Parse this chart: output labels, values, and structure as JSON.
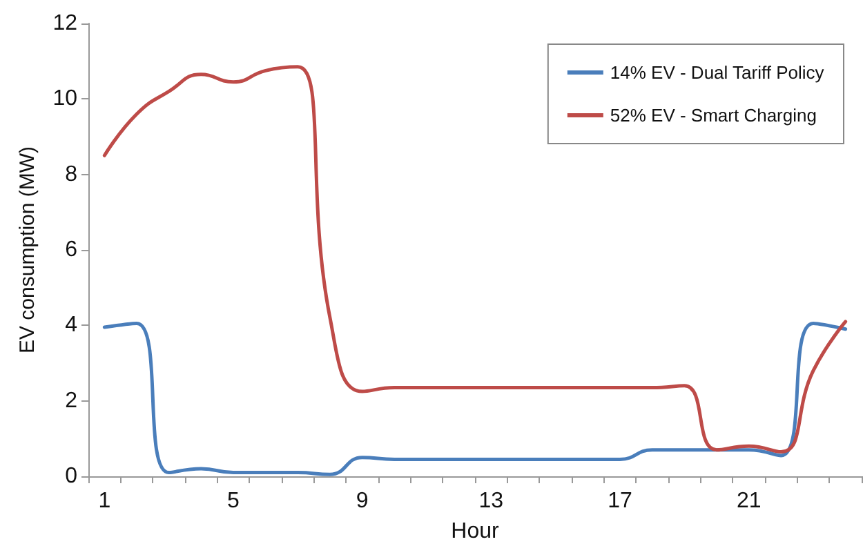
{
  "chart_data": {
    "type": "line",
    "xlabel": "Hour",
    "ylabel": "EV consumption (MW)",
    "categories": [
      "1",
      null,
      null,
      null,
      "5",
      null,
      null,
      null,
      "9",
      null,
      null,
      null,
      "13",
      null,
      null,
      null,
      "17",
      null,
      null,
      null,
      "21",
      null,
      null,
      null
    ],
    "series": [
      {
        "name": "14% EV - Dual Tariff Policy",
        "color": "#4a7ebb",
        "values": [
          3.95,
          4.05,
          0.1,
          0.2,
          0.1,
          0.1,
          0.1,
          0.05,
          0.5,
          0.45,
          0.45,
          0.45,
          0.45,
          0.45,
          0.45,
          0.45,
          0.45,
          0.7,
          0.7,
          0.7,
          0.7,
          0.55,
          4.05,
          3.9
        ]
      },
      {
        "name": "52% EV - Smart Charging",
        "color": "#be4b48",
        "values": [
          8.5,
          9.6,
          10.2,
          10.65,
          10.45,
          10.75,
          10.85,
          4.2,
          2.25,
          2.35,
          2.35,
          2.35,
          2.35,
          2.35,
          2.35,
          2.35,
          2.35,
          2.35,
          2.4,
          0.7,
          0.8,
          0.65,
          2.8,
          4.1
        ]
      }
    ],
    "ylim": [
      0,
      12
    ],
    "yticks": [
      0,
      2,
      4,
      6,
      8,
      10,
      12
    ],
    "grid": false,
    "legend": "top right",
    "marker": "none",
    "line_style": "solid"
  }
}
